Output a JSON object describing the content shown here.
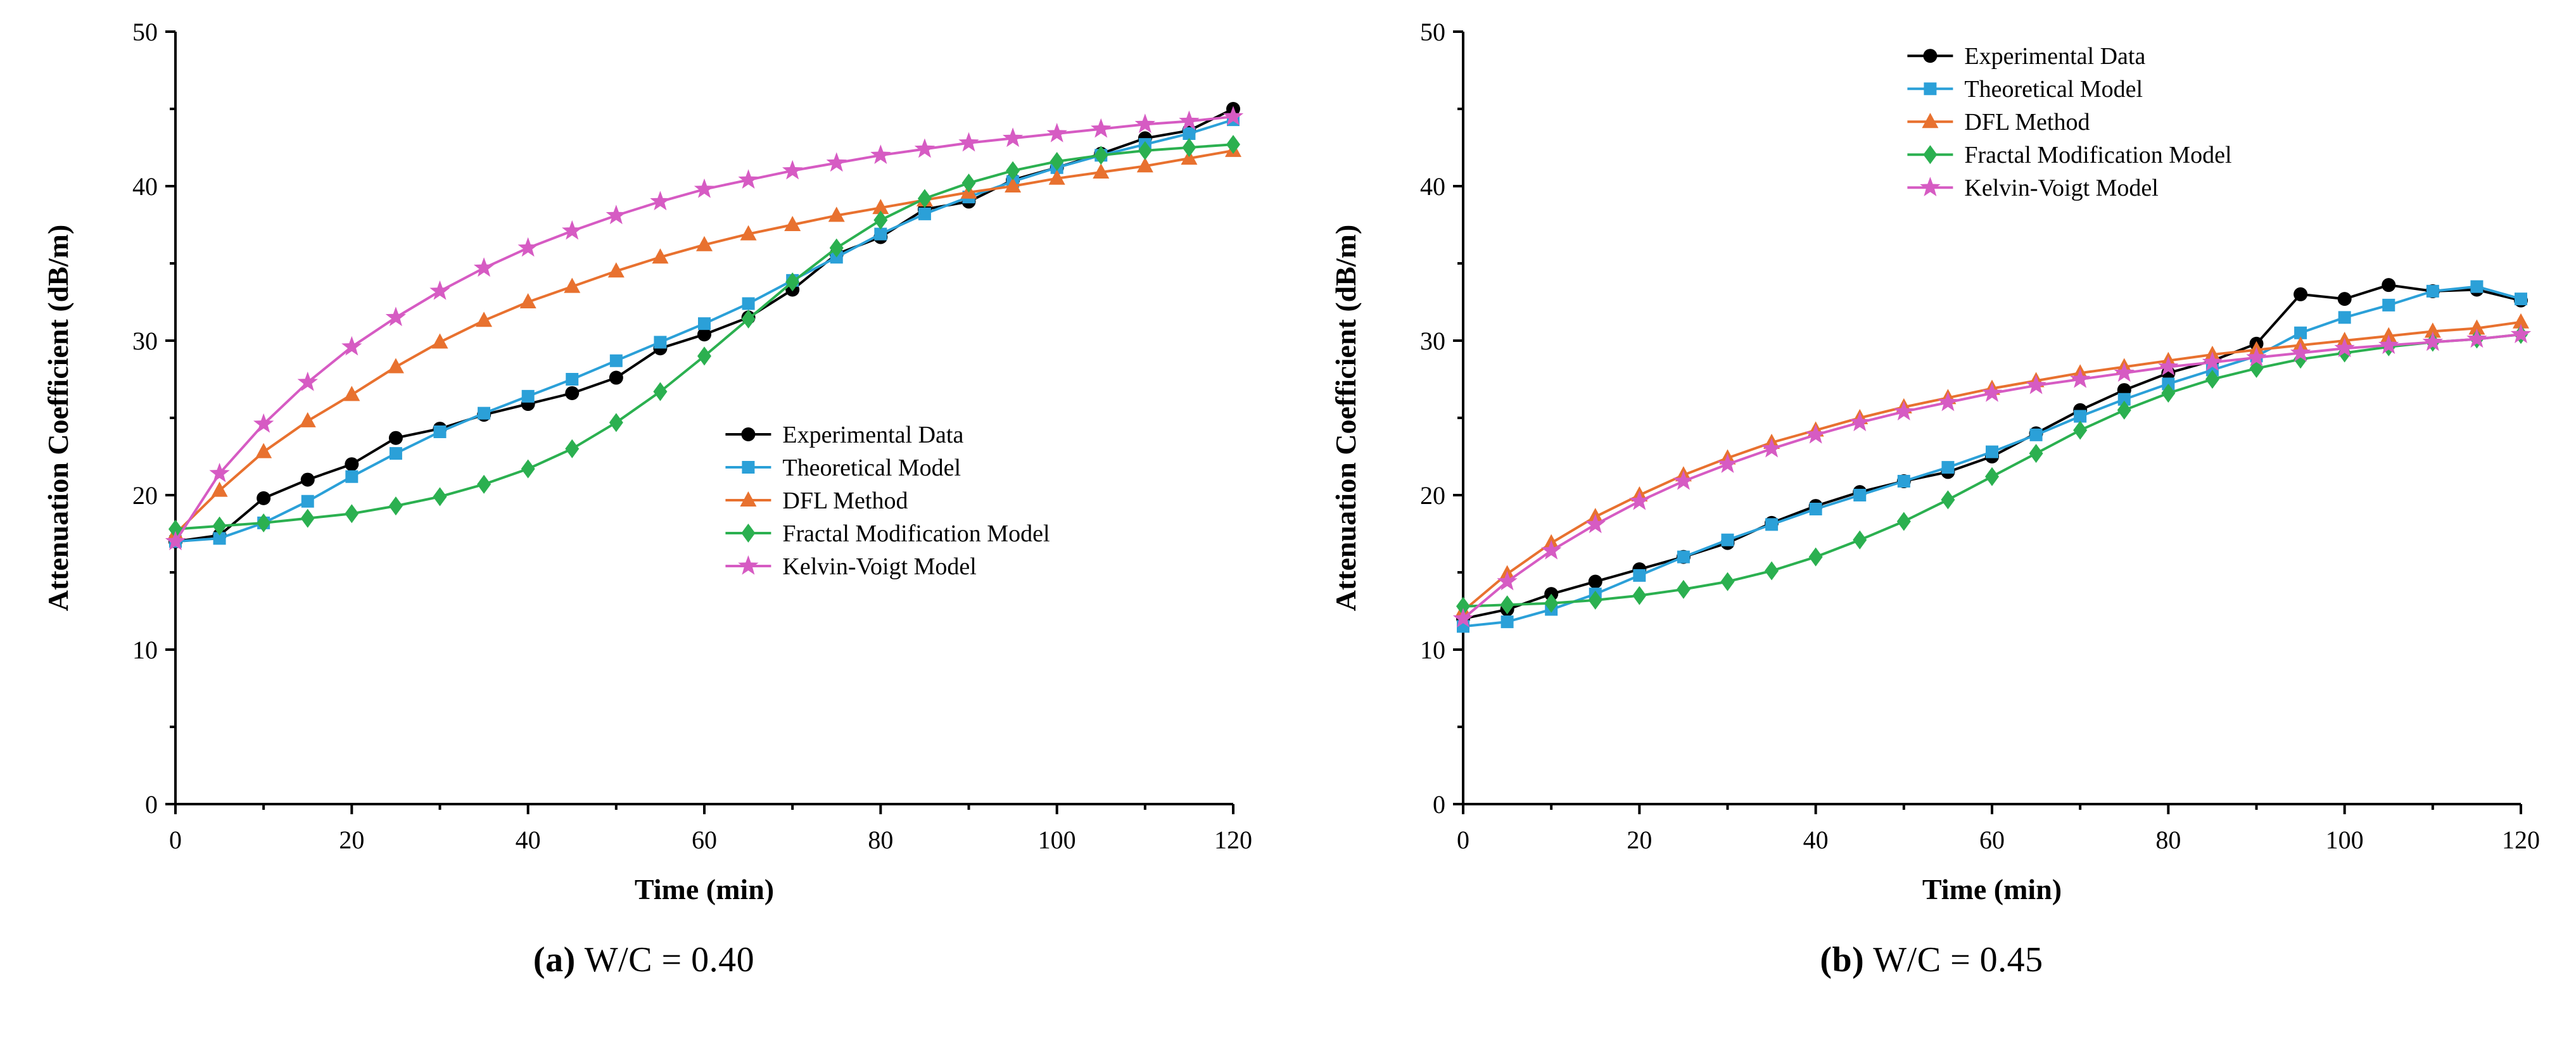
{
  "figure": {
    "captions": [
      {
        "label": "(a)",
        "text": "W/C = 0.40"
      },
      {
        "label": "(b)",
        "text": "W/C = 0.45"
      }
    ]
  },
  "chart_data": [
    {
      "type": "line",
      "title": "",
      "xlabel": "Time (min)",
      "ylabel": "Attenuation Coefficient (dB/m)",
      "xlim": [
        0,
        120
      ],
      "ylim": [
        0,
        50
      ],
      "xticks": [
        0,
        20,
        40,
        60,
        80,
        100,
        120
      ],
      "xminor": [
        10,
        30,
        50,
        70,
        90,
        110
      ],
      "yticks": [
        0,
        10,
        20,
        30,
        40,
        50
      ],
      "yminor": [
        5,
        15,
        25,
        35,
        45
      ],
      "grid": false,
      "legend": {
        "position": "center-right-inside",
        "fx": 0.52,
        "fy": 0.5
      },
      "x": [
        0,
        5,
        10,
        15,
        20,
        25,
        30,
        35,
        40,
        45,
        50,
        55,
        60,
        65,
        70,
        75,
        80,
        85,
        90,
        95,
        100,
        105,
        110,
        115,
        120
      ],
      "series": [
        {
          "name": "Experimental Data",
          "color": "#000000",
          "marker": "circle",
          "values": [
            17.0,
            17.4,
            19.8,
            21.0,
            22.0,
            23.7,
            24.3,
            25.2,
            25.9,
            26.6,
            27.6,
            29.5,
            30.4,
            31.5,
            33.3,
            35.6,
            36.7,
            38.5,
            39.0,
            40.4,
            41.2,
            42.1,
            43.1,
            43.6,
            45.0
          ]
        },
        {
          "name": "Theoretical Model",
          "color": "#2BA0D8",
          "marker": "square",
          "values": [
            17.0,
            17.2,
            18.2,
            19.6,
            21.2,
            22.7,
            24.1,
            25.3,
            26.4,
            27.5,
            28.7,
            29.9,
            31.1,
            32.4,
            33.9,
            35.4,
            36.9,
            38.2,
            39.3,
            40.3,
            41.2,
            42.0,
            42.7,
            43.4,
            44.3
          ]
        },
        {
          "name": "DFL Method",
          "color": "#E8712F",
          "marker": "triangle",
          "values": [
            17.5,
            20.3,
            22.8,
            24.8,
            26.5,
            28.3,
            29.9,
            31.3,
            32.5,
            33.5,
            34.5,
            35.4,
            36.2,
            36.9,
            37.5,
            38.1,
            38.6,
            39.1,
            39.6,
            40.0,
            40.5,
            40.9,
            41.3,
            41.8,
            42.3
          ]
        },
        {
          "name": "Fractal Modification Model",
          "color": "#2BB050",
          "marker": "diamond",
          "values": [
            17.8,
            18.0,
            18.2,
            18.5,
            18.8,
            19.3,
            19.9,
            20.7,
            21.7,
            23.0,
            24.7,
            26.7,
            29.0,
            31.4,
            33.8,
            36.0,
            37.8,
            39.2,
            40.2,
            41.0,
            41.6,
            42.0,
            42.3,
            42.5,
            42.7
          ]
        },
        {
          "name": "Kelvin-Voigt Model",
          "color": "#D65BC3",
          "marker": "star",
          "values": [
            17.0,
            21.4,
            24.6,
            27.3,
            29.6,
            31.5,
            33.2,
            34.7,
            36.0,
            37.1,
            38.1,
            39.0,
            39.8,
            40.4,
            41.0,
            41.5,
            42.0,
            42.4,
            42.8,
            43.1,
            43.4,
            43.7,
            44.0,
            44.2,
            44.5
          ]
        }
      ]
    },
    {
      "type": "line",
      "title": "",
      "xlabel": "Time (min)",
      "ylabel": "Attenuation Coefficient (dB/m)",
      "xlim": [
        0,
        120
      ],
      "ylim": [
        0,
        50
      ],
      "xticks": [
        0,
        20,
        40,
        60,
        80,
        100,
        120
      ],
      "xminor": [
        10,
        30,
        50,
        70,
        90,
        110
      ],
      "yticks": [
        0,
        10,
        20,
        30,
        40,
        50
      ],
      "yminor": [
        5,
        15,
        25,
        35,
        45
      ],
      "grid": false,
      "legend": {
        "position": "top-right-inside",
        "fx": 0.42,
        "fy": 0.01
      },
      "x": [
        0,
        5,
        10,
        15,
        20,
        25,
        30,
        35,
        40,
        45,
        50,
        55,
        60,
        65,
        70,
        75,
        80,
        85,
        90,
        95,
        100,
        105,
        110,
        115,
        120
      ],
      "series": [
        {
          "name": "Experimental Data",
          "color": "#000000",
          "marker": "circle",
          "values": [
            12.0,
            12.6,
            13.6,
            14.4,
            15.2,
            16.0,
            16.9,
            18.2,
            19.3,
            20.2,
            20.9,
            21.5,
            22.5,
            24.0,
            25.5,
            26.8,
            27.9,
            28.7,
            29.8,
            33.0,
            32.7,
            33.6,
            33.2,
            33.3,
            32.6
          ]
        },
        {
          "name": "Theoretical Model",
          "color": "#2BA0D8",
          "marker": "square",
          "values": [
            11.5,
            11.8,
            12.6,
            13.6,
            14.8,
            16.0,
            17.1,
            18.1,
            19.1,
            20.0,
            20.9,
            21.8,
            22.8,
            23.9,
            25.1,
            26.2,
            27.2,
            28.1,
            29.0,
            30.5,
            31.5,
            32.3,
            33.2,
            33.5,
            32.7
          ]
        },
        {
          "name": "DFL Method",
          "color": "#E8712F",
          "marker": "triangle",
          "values": [
            12.5,
            14.9,
            16.9,
            18.6,
            20.0,
            21.3,
            22.4,
            23.4,
            24.2,
            25.0,
            25.7,
            26.3,
            26.9,
            27.4,
            27.9,
            28.3,
            28.7,
            29.1,
            29.4,
            29.7,
            30.0,
            30.3,
            30.6,
            30.8,
            31.2
          ]
        },
        {
          "name": "Fractal Modification Model",
          "color": "#2BB050",
          "marker": "diamond",
          "values": [
            12.8,
            12.9,
            13.0,
            13.2,
            13.5,
            13.9,
            14.4,
            15.1,
            16.0,
            17.1,
            18.3,
            19.7,
            21.2,
            22.7,
            24.2,
            25.5,
            26.6,
            27.5,
            28.2,
            28.8,
            29.2,
            29.6,
            29.9,
            30.1,
            30.4
          ]
        },
        {
          "name": "Kelvin-Voigt Model",
          "color": "#D65BC3",
          "marker": "star",
          "values": [
            12.0,
            14.4,
            16.4,
            18.1,
            19.6,
            20.9,
            22.0,
            23.0,
            23.9,
            24.7,
            25.4,
            26.0,
            26.6,
            27.1,
            27.5,
            27.9,
            28.3,
            28.6,
            28.9,
            29.2,
            29.5,
            29.7,
            29.9,
            30.1,
            30.4
          ]
        }
      ]
    }
  ]
}
